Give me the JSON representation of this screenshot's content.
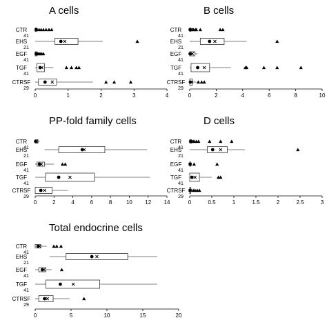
{
  "chart_data": [
    {
      "type": "box",
      "title": "A cells",
      "xlim": [
        0,
        4
      ],
      "xticks": [
        "0",
        "1",
        "2",
        "3",
        "4"
      ],
      "groups": [
        {
          "label": "CTR",
          "n": "41",
          "whisker_min": 0,
          "q1": 0,
          "median": 0.03,
          "q3": 0.05,
          "whisker_max": 0.12,
          "mean": 0.03,
          "outliers": [
            0.12,
            0.18,
            0.25,
            0.33,
            0.42,
            0.5
          ]
        },
        {
          "label": "EHS",
          "n": "21",
          "whisker_min": 0,
          "q1": 0.6,
          "median": 0.78,
          "q3": 1.3,
          "whisker_max": 2.05,
          "mean": 0.9,
          "outliers": [
            3.1
          ]
        },
        {
          "label": "EGF",
          "n": "41",
          "whisker_min": 0,
          "q1": 0,
          "median": 0.03,
          "q3": 0.06,
          "whisker_max": 0.1,
          "mean": 0.05,
          "outliers": [
            0.08,
            0.12,
            0.15,
            0.2,
            0.25
          ]
        },
        {
          "label": "TGF",
          "n": "41",
          "whisker_min": 0,
          "q1": 0.05,
          "median": 0.15,
          "q3": 0.28,
          "whisker_max": 0.55,
          "mean": 0.2,
          "outliers": [
            0.95,
            1.1,
            1.25,
            1.33
          ]
        },
        {
          "label": "CTRSF",
          "n": "29",
          "whisker_min": 0,
          "q1": 0.1,
          "median": 0.3,
          "q3": 0.65,
          "whisker_max": 1.75,
          "mean": 0.52,
          "outliers": [
            2.15,
            2.4,
            2.9
          ]
        }
      ]
    },
    {
      "type": "box",
      "title": "B cells",
      "xlim": [
        0,
        10
      ],
      "xticks": [
        "0",
        "2",
        "4",
        "6",
        "8",
        "10"
      ],
      "groups": [
        {
          "label": "CTR",
          "n": "41",
          "whisker_min": 0,
          "q1": 0,
          "median": 0.03,
          "q3": 0.1,
          "whisker_max": 0.2,
          "mean": 0.1,
          "outliers": [
            0.25,
            0.3,
            0.45,
            0.5,
            0.8,
            2.3,
            2.5
          ]
        },
        {
          "label": "EHS",
          "n": "21",
          "whisker_min": 0,
          "q1": 0.8,
          "median": 1.5,
          "q3": 2.6,
          "whisker_max": 4.3,
          "mean": 1.9,
          "outliers": [
            6.6
          ]
        },
        {
          "label": "EGF",
          "n": "41",
          "whisker_min": 0,
          "q1": 0,
          "median": 0.03,
          "q3": 0.4,
          "whisker_max": 0.6,
          "mean": 0.2,
          "outliers": []
        },
        {
          "label": "TGF",
          "n": "41",
          "whisker_min": 0,
          "q1": 0.1,
          "median": 0.6,
          "q3": 1.5,
          "whisker_max": 3.1,
          "mean": 1.1,
          "outliers": [
            4.2,
            4.3,
            5.6,
            6.6,
            8.4
          ]
        },
        {
          "label": "CTRSF",
          "n": "29",
          "whisker_min": 0,
          "q1": 0,
          "median": 0.05,
          "q3": 0.2,
          "whisker_max": 0.5,
          "mean": 0.15,
          "outliers": [
            0.65,
            0.9,
            1.1
          ]
        }
      ]
    },
    {
      "type": "box",
      "title": "PP-fold family cells",
      "xlim": [
        0,
        14
      ],
      "xticks": [
        "0",
        "2",
        "4",
        "6",
        "8",
        "10",
        "12",
        "14"
      ],
      "groups": [
        {
          "label": "CTR",
          "n": "41",
          "whisker_min": 0,
          "q1": 0,
          "median": 0.05,
          "q3": 0.3,
          "whisker_max": 0.5,
          "mean": 0.15,
          "outliers": []
        },
        {
          "label": "EHS",
          "n": "21",
          "whisker_min": 1.0,
          "q1": 2.5,
          "median": 5.0,
          "q3": 7.4,
          "whisker_max": 11.9,
          "mean": 5.2,
          "outliers": []
        },
        {
          "label": "EGF",
          "n": "41",
          "whisker_min": 0,
          "q1": 0.2,
          "median": 0.45,
          "q3": 1.0,
          "whisker_max": 2.0,
          "mean": 0.65,
          "outliers": [
            2.9,
            3.2
          ]
        },
        {
          "label": "TGF",
          "n": "41",
          "whisker_min": 0,
          "q1": 1.1,
          "median": 2.5,
          "q3": 6.3,
          "whisker_max": 12.2,
          "mean": 3.7,
          "outliers": []
        },
        {
          "label": "CTRSF",
          "n": "29",
          "whisker_min": 0,
          "q1": 0,
          "median": 0.6,
          "q3": 1.8,
          "whisker_max": 3.5,
          "mean": 1.0,
          "outliers": []
        }
      ]
    },
    {
      "type": "box",
      "title": "D cells",
      "xlim": [
        0,
        3
      ],
      "xticks": [
        "0",
        "0.5",
        "1",
        "1.5",
        "2",
        "2.5",
        "3"
      ],
      "groups": [
        {
          "label": "CTR",
          "n": "41",
          "whisker_min": 0,
          "q1": 0,
          "median": 0.02,
          "q3": 0.04,
          "whisker_max": 0.1,
          "mean": 0.03,
          "outliers": [
            0.08,
            0.1,
            0.15,
            0.2,
            0.45,
            0.7,
            0.95
          ]
        },
        {
          "label": "EHS",
          "n": "21",
          "whisker_min": 0,
          "q1": 0.4,
          "median": 0.52,
          "q3": 0.85,
          "whisker_max": 1.25,
          "mean": 0.7,
          "outliers": [
            2.45
          ]
        },
        {
          "label": "EGF",
          "n": "41",
          "whisker_min": 0,
          "q1": 0,
          "median": 0.01,
          "q3": 0.02,
          "whisker_max": 0.05,
          "mean": 0.01,
          "outliers": [
            0.1,
            0.62
          ]
        },
        {
          "label": "TGF",
          "n": "41",
          "whisker_min": 0,
          "q1": 0,
          "median": 0.05,
          "q3": 0.22,
          "whisker_max": 0.5,
          "mean": 0.12,
          "outliers": [
            0.65,
            0.7
          ]
        },
        {
          "label": "CTRSF",
          "n": "29",
          "whisker_min": 0,
          "q1": 0,
          "median": 0.01,
          "q3": 0.02,
          "whisker_max": 0.05,
          "mean": 0.01,
          "outliers": [
            0.08,
            0.12,
            0.17,
            0.22
          ]
        }
      ]
    },
    {
      "type": "box",
      "title": "Total endocrine cells",
      "xlim": [
        0,
        20
      ],
      "xticks": [
        "0",
        "5",
        "10",
        "15",
        "20"
      ],
      "groups": [
        {
          "label": "CTR",
          "n": "41",
          "whisker_min": 0,
          "q1": 0,
          "median": 0.4,
          "q3": 0.8,
          "whisker_max": 1.6,
          "mean": 0.6,
          "outliers": [
            2.6,
            3.0,
            3.6
          ]
        },
        {
          "label": "EHS",
          "n": "21",
          "whisker_min": 2.0,
          "q1": 4.3,
          "median": 7.9,
          "q3": 12.9,
          "whisker_max": 17.0,
          "mean": 8.6,
          "outliers": []
        },
        {
          "label": "EGF",
          "n": "41",
          "whisker_min": 0,
          "q1": 0.5,
          "median": 1.0,
          "q3": 1.5,
          "whisker_max": 2.3,
          "mean": 1.2,
          "outliers": [
            3.7
          ]
        },
        {
          "label": "TGF",
          "n": "41",
          "whisker_min": 0,
          "q1": 1.5,
          "median": 3.5,
          "q3": 9.0,
          "whisker_max": 17.0,
          "mean": 5.3,
          "outliers": []
        },
        {
          "label": "CTRSF",
          "n": "29",
          "whisker_min": 0,
          "q1": 0.5,
          "median": 1.3,
          "q3": 2.5,
          "whisker_max": 4.8,
          "mean": 1.7,
          "outliers": [
            6.8
          ]
        }
      ]
    }
  ]
}
